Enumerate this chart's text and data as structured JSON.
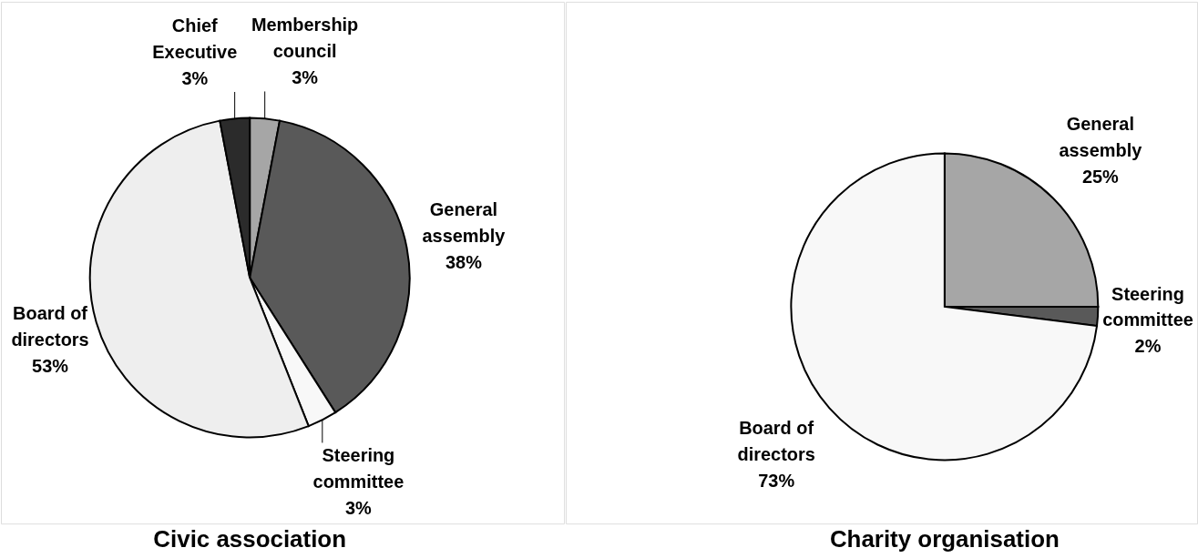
{
  "chart_data": [
    {
      "type": "pie",
      "title": "Civic association",
      "categories": [
        "Membership council",
        "General assembly",
        "Steering committee",
        "Board of directors",
        "Chief Executive"
      ],
      "values": [
        3,
        38,
        3,
        53,
        3
      ],
      "colors": [
        "#a6a6a6",
        "#595959",
        "#f8f8f8",
        "#eeeeee",
        "#2b2b2b"
      ],
      "value_labels": [
        "3%",
        "38%",
        "3%",
        "53%",
        "3%"
      ]
    },
    {
      "type": "pie",
      "title": "Charity organisation",
      "categories": [
        "General assembly",
        "Steering committee",
        "Board of directors"
      ],
      "values": [
        25,
        2,
        73
      ],
      "colors": [
        "#a6a6a6",
        "#595959",
        "#f8f8f8"
      ],
      "value_labels": [
        "25%",
        "2%",
        "73%"
      ]
    }
  ]
}
